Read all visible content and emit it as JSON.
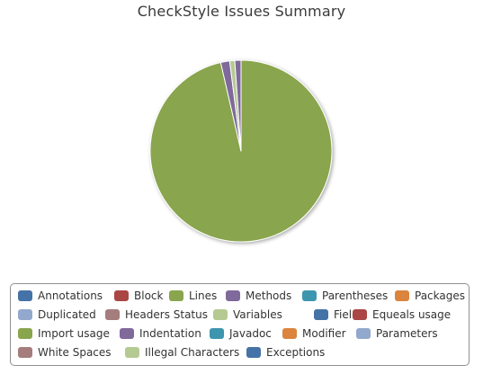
{
  "chart_data": {
    "type": "pie",
    "title": "CheckStyle Issues Summary",
    "legend_position": "bottom",
    "series": [
      {
        "name": "Annotations",
        "value": 0,
        "color": "#4572a7"
      },
      {
        "name": "Block",
        "value": 0,
        "color": "#aa4643"
      },
      {
        "name": "Lines",
        "value": 96.4,
        "color": "#89a54e"
      },
      {
        "name": "Methods",
        "value": 1.6,
        "color": "#80699b"
      },
      {
        "name": "Parentheses",
        "value": 0,
        "color": "#3d96ae"
      },
      {
        "name": "Packages",
        "value": 0,
        "color": "#db843d"
      },
      {
        "name": "Duplicated",
        "value": 0,
        "color": "#92a8cd"
      },
      {
        "name": "Headers Status",
        "value": 0,
        "color": "#a47d7c"
      },
      {
        "name": "Variables",
        "value": 0.9,
        "color": "#b5ca92"
      },
      {
        "name": "Fields",
        "value": 0,
        "color": "#4572a7"
      },
      {
        "name": "Equeals usage",
        "value": 0,
        "color": "#aa4643"
      },
      {
        "name": "Import usage",
        "value": 0,
        "color": "#89a54e"
      },
      {
        "name": "Indentation",
        "value": 1.1,
        "color": "#80699b"
      },
      {
        "name": "Javadoc",
        "value": 0,
        "color": "#3d96ae"
      },
      {
        "name": "Modifier",
        "value": 0,
        "color": "#db843d"
      },
      {
        "name": "Parameters",
        "value": 0,
        "color": "#92a8cd"
      },
      {
        "name": "White Spaces",
        "value": 0,
        "color": "#a47d7c"
      },
      {
        "name": "Illegal Characters",
        "value": 0,
        "color": "#b5ca92"
      },
      {
        "name": "Exceptions",
        "value": 0,
        "color": "#4572a7"
      }
    ]
  }
}
